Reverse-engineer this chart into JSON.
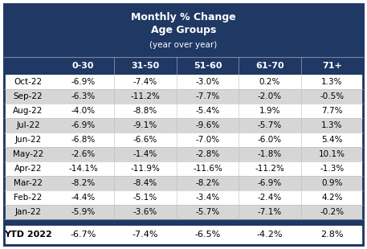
{
  "title_line1": "Monthly % Change",
  "title_line2": "Age Groups",
  "title_line3": "(year over year)",
  "col_headers": [
    "0-30",
    "31-50",
    "51-60",
    "61-70",
    "71+"
  ],
  "row_labels": [
    "Oct-22",
    "Sep-22",
    "Aug-22",
    "Jul-22",
    "Jun-22",
    "May-22",
    "Apr-22",
    "Mar-22",
    "Feb-22",
    "Jan-22"
  ],
  "ytd_label": "YTD 2022",
  "data": [
    [
      "-6.9%",
      "-7.4%",
      "-3.0%",
      "0.2%",
      "1.3%"
    ],
    [
      "-6.3%",
      "-11.2%",
      "-7.7%",
      "-2.0%",
      "-0.5%"
    ],
    [
      "-4.0%",
      "-8.8%",
      "-5.4%",
      "1.9%",
      "7.7%"
    ],
    [
      "-6.9%",
      "-9.1%",
      "-9.6%",
      "-5.7%",
      "1.3%"
    ],
    [
      "-6.8%",
      "-6.6%",
      "-7.0%",
      "-6.0%",
      "5.4%"
    ],
    [
      "-2.6%",
      "-1.4%",
      "-2.8%",
      "-1.8%",
      "10.1%"
    ],
    [
      "-14.1%",
      "-11.9%",
      "-11.6%",
      "-11.2%",
      "-1.3%"
    ],
    [
      "-8.2%",
      "-8.4%",
      "-8.2%",
      "-6.9%",
      "0.9%"
    ],
    [
      "-4.4%",
      "-5.1%",
      "-3.4%",
      "-2.4%",
      "4.2%"
    ],
    [
      "-5.9%",
      "-3.6%",
      "-5.7%",
      "-7.1%",
      "-0.2%"
    ]
  ],
  "ytd_data": [
    "-6.7%",
    "-7.4%",
    "-6.5%",
    "-4.2%",
    "2.8%"
  ],
  "header_bg": "#1f3864",
  "col_header_bg": "#1f3864",
  "row_odd_bg": "#ffffff",
  "row_even_bg": "#d6d6d6",
  "ytd_bg": "#ffffff",
  "separator_bg": "#1f3864",
  "header_text_color": "#ffffff",
  "body_text_color": "#000000",
  "ytd_text_color": "#000000",
  "border_color": "#1f3864",
  "fig_bg": "#ffffff",
  "outer_border_color": "#8496b0"
}
